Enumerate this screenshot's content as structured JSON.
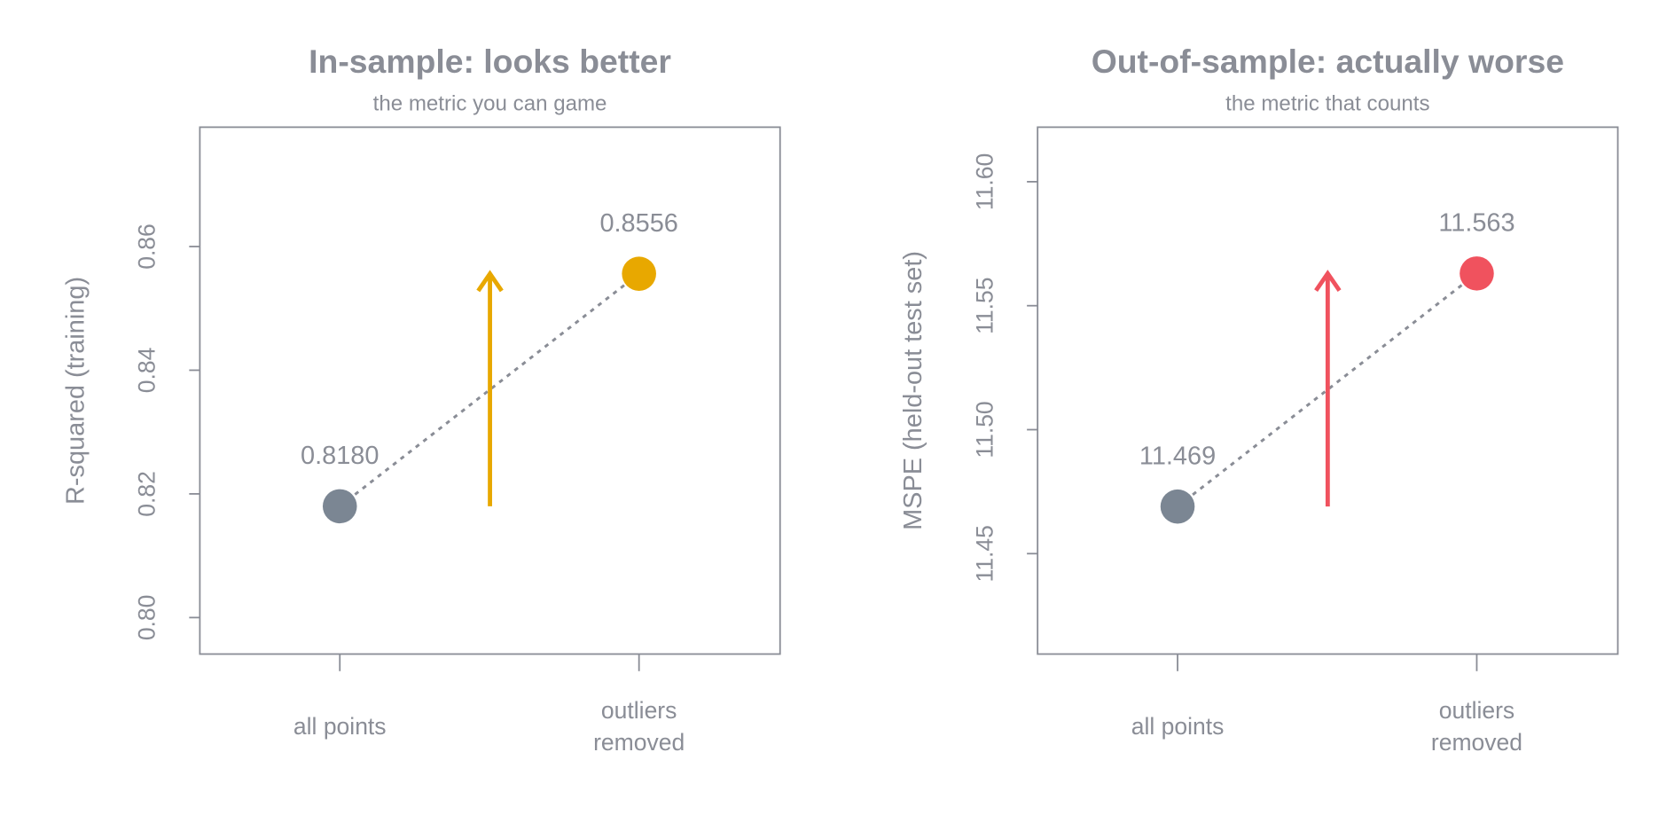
{
  "chart_data": [
    {
      "type": "dot",
      "title": "In-sample: looks better",
      "subtitle": "the metric you can game",
      "ylabel": "R-squared (training)",
      "categories": [
        "all points",
        "outliers removed"
      ],
      "values": [
        0.818,
        0.8556
      ],
      "value_labels": [
        "0.8180",
        "0.8556"
      ],
      "colors": [
        "#7b8693",
        "#e8a800"
      ],
      "ylim": [
        0.7941,
        0.8793
      ],
      "yticks": [
        {
          "value": 0.8,
          "label": "0.80"
        },
        0.82,
        0.84,
        0.86
      ]
    },
    {
      "type": "dot",
      "title": "Out-of-sample: actually worse",
      "subtitle": "the metric that counts",
      "ylabel": "MSPE (held-out test set)",
      "categories": [
        "all points",
        "outliers removed"
      ],
      "values": [
        11.469,
        11.563
      ],
      "colors": [
        "#7b8693",
        "#f0525e"
      ],
      "ylim": [
        11.4095,
        11.622
      ],
      "yticks": [
        11.45,
        {
          "value": 11.5,
          "label": "11.50"
        },
        11.55,
        {
          "value": 11.6,
          "label": "11.60"
        }
      ]
    }
  ]
}
